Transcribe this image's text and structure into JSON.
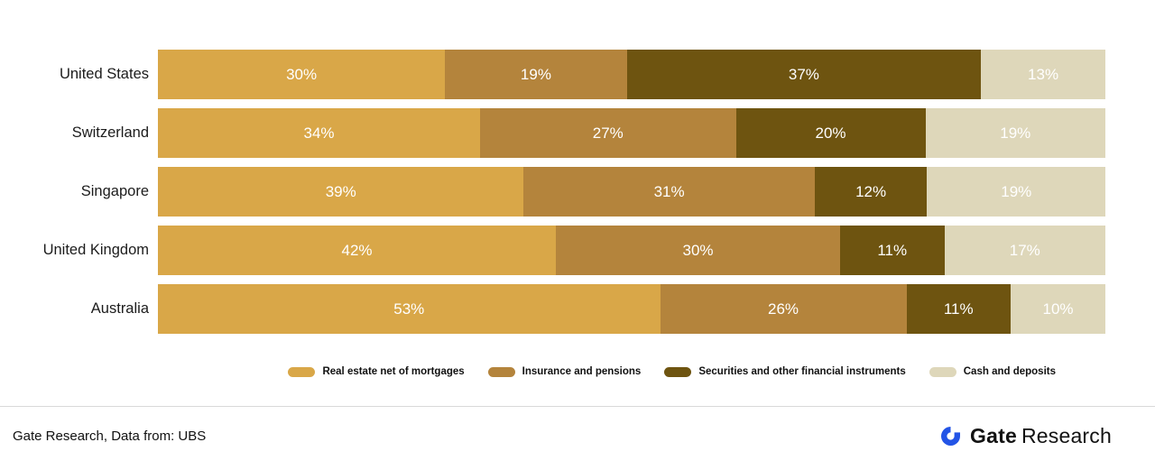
{
  "chart_data": {
    "type": "bar",
    "orientation": "horizontal",
    "stacked": true,
    "grid": false,
    "legend_position": "bottom",
    "value_suffix": "%",
    "categories": [
      "United States",
      "Switzerland",
      "Singapore",
      "United Kingdom",
      "Australia"
    ],
    "series": [
      {
        "name": "Real estate net of mortgages",
        "color": "#D9A748",
        "values": [
          30,
          34,
          39,
          42,
          53
        ]
      },
      {
        "name": "Insurance and pensions",
        "color": "#B4843C",
        "values": [
          19,
          27,
          31,
          30,
          26
        ]
      },
      {
        "name": "Securities and other financial instruments",
        "color": "#6E5410",
        "values": [
          37,
          20,
          12,
          11,
          11
        ]
      },
      {
        "name": "Cash and deposits",
        "color": "#DED7BA",
        "values": [
          13,
          19,
          19,
          17,
          10
        ]
      }
    ]
  },
  "footer": {
    "source": "Gate Research, Data from: UBS",
    "brand": {
      "bold": "Gate",
      "regular": "Research",
      "logo_color": "#2354E6"
    }
  }
}
